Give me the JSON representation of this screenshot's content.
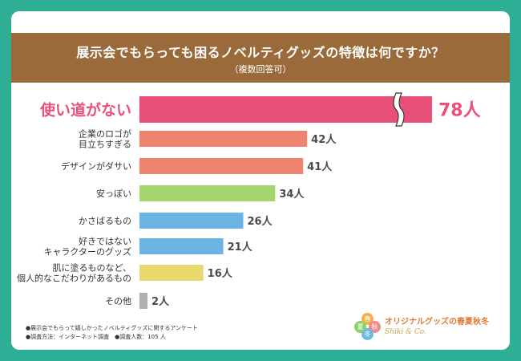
{
  "header": {
    "title": "展示会でもらっても困るノベルティグッズの特徴は何ですか？",
    "subtitle": "（複数回答可）"
  },
  "chart_data": {
    "type": "bar",
    "orientation": "horizontal",
    "title": "展示会でもらっても困るノベルティグッズの特徴は何ですか？",
    "subtitle": "（複数回答可）",
    "unit": "人",
    "axis_break": true,
    "categories": [
      [
        "使い道がない"
      ],
      [
        "企業のロゴが",
        "目立ちすぎる"
      ],
      [
        "デザインがダサい"
      ],
      [
        "安っぽい"
      ],
      [
        "かさばるもの"
      ],
      [
        "好きではない",
        "キャラクターのグッズ"
      ],
      [
        "肌に塗るものなど、",
        "個人的なこだわりがあるもの"
      ],
      [
        "その他"
      ]
    ],
    "values": [
      78,
      42,
      41,
      34,
      26,
      21,
      16,
      2
    ],
    "value_labels": [
      "78人",
      "42人",
      "41人",
      "34人",
      "26人",
      "21人",
      "16人",
      "2人"
    ],
    "colors": [
      "#e8507a",
      "#ee8470",
      "#ee8470",
      "#a5d66b",
      "#6ab3e4",
      "#6ab3e4",
      "#e8d86e",
      "#b0b0b0"
    ]
  },
  "notes": [
    "●展示会でもらって嬉しかったノベルティグッズに関するアンケート",
    "●調査方法：インターネット調査　●調査人数：105 人"
  ],
  "logo": {
    "brand": "オリジナルグッズの春夏秋冬",
    "sub": "Shiki & Co.",
    "petal_chars": [
      "春",
      "夏",
      "秋",
      "冬"
    ],
    "petal_colors": [
      "#f2b04a",
      "#8ccf6b",
      "#f08a8a",
      "#6bbbe0"
    ]
  }
}
